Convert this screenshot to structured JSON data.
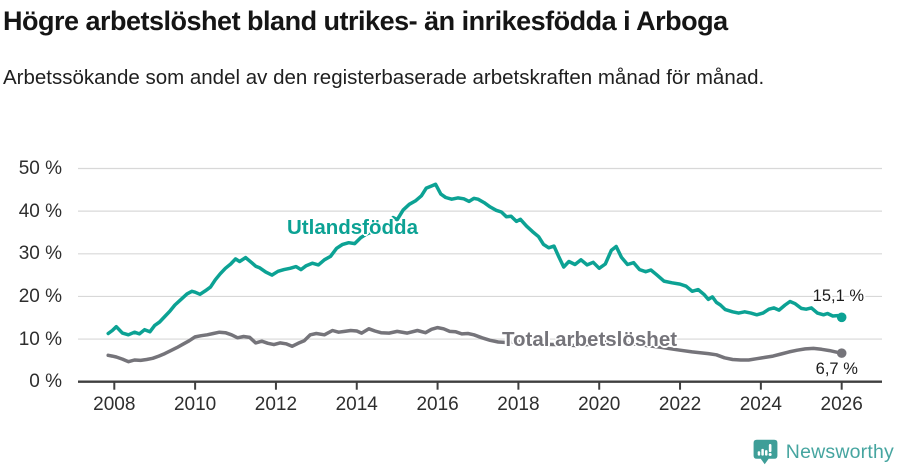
{
  "chart_data": {
    "type": "line",
    "title": "Högre arbetslöshet bland utrikes- än inrikesfödda i Arboga",
    "subtitle": "Arbetssökande som andel av den registerbaserade arbetskraften månad för månad.",
    "unit": "%",
    "legend_position": "inline-labels",
    "x_axis": {
      "range": [
        2007.6,
        2026.5
      ],
      "ticks": [
        2008,
        2010,
        2012,
        2014,
        2016,
        2018,
        2020,
        2022,
        2024,
        2026
      ],
      "tick_labels": [
        "2008",
        "2010",
        "2012",
        "2014",
        "2016",
        "2018",
        "2020",
        "2022",
        "2024",
        "2026"
      ]
    },
    "y_axis": {
      "range": [
        0,
        50
      ],
      "ticks": [
        0,
        10,
        20,
        30,
        40,
        50
      ],
      "tick_labels": [
        "0 %",
        "10 %",
        "20 %",
        "30 %",
        "40 %",
        "50 %"
      ],
      "grid": true
    },
    "series": [
      {
        "name": "Utlandsfödda",
        "color": "#0ca294",
        "end_label": "15,1 %",
        "end_value": 15.1,
        "points": [
          [
            2007.85,
            11.3
          ],
          [
            2007.95,
            12.0
          ],
          [
            2008.05,
            12.9
          ],
          [
            2008.2,
            11.4
          ],
          [
            2008.35,
            11.0
          ],
          [
            2008.5,
            11.6
          ],
          [
            2008.62,
            11.2
          ],
          [
            2008.75,
            12.2
          ],
          [
            2008.88,
            11.7
          ],
          [
            2009.0,
            13.2
          ],
          [
            2009.12,
            14.0
          ],
          [
            2009.25,
            15.3
          ],
          [
            2009.38,
            16.6
          ],
          [
            2009.5,
            18.0
          ],
          [
            2009.65,
            19.3
          ],
          [
            2009.8,
            20.6
          ],
          [
            2009.92,
            21.2
          ],
          [
            2010.0,
            21.0
          ],
          [
            2010.12,
            20.5
          ],
          [
            2010.25,
            21.3
          ],
          [
            2010.38,
            22.2
          ],
          [
            2010.5,
            23.9
          ],
          [
            2010.62,
            25.3
          ],
          [
            2010.75,
            26.6
          ],
          [
            2010.88,
            27.6
          ],
          [
            2011.0,
            28.8
          ],
          [
            2011.1,
            28.2
          ],
          [
            2011.25,
            29.1
          ],
          [
            2011.4,
            27.9
          ],
          [
            2011.5,
            27.1
          ],
          [
            2011.6,
            26.7
          ],
          [
            2011.75,
            25.7
          ],
          [
            2011.9,
            25.0
          ],
          [
            2012.05,
            25.9
          ],
          [
            2012.2,
            26.3
          ],
          [
            2012.35,
            26.6
          ],
          [
            2012.5,
            27.0
          ],
          [
            2012.62,
            26.3
          ],
          [
            2012.75,
            27.2
          ],
          [
            2012.9,
            27.8
          ],
          [
            2013.05,
            27.4
          ],
          [
            2013.2,
            28.6
          ],
          [
            2013.35,
            29.4
          ],
          [
            2013.5,
            31.3
          ],
          [
            2013.65,
            32.2
          ],
          [
            2013.8,
            32.6
          ],
          [
            2013.95,
            32.4
          ],
          [
            2014.1,
            33.8
          ],
          [
            2014.25,
            34.7
          ],
          [
            2014.4,
            35.2
          ],
          [
            2014.5,
            34.7
          ],
          [
            2014.65,
            35.8
          ],
          [
            2014.8,
            37.3
          ],
          [
            2014.9,
            38.5
          ],
          [
            2015.0,
            38.0
          ],
          [
            2015.15,
            40.3
          ],
          [
            2015.3,
            41.6
          ],
          [
            2015.45,
            42.4
          ],
          [
            2015.6,
            43.6
          ],
          [
            2015.72,
            45.4
          ],
          [
            2015.85,
            45.9
          ],
          [
            2015.95,
            46.3
          ],
          [
            2016.08,
            44.0
          ],
          [
            2016.2,
            43.2
          ],
          [
            2016.35,
            42.8
          ],
          [
            2016.5,
            43.1
          ],
          [
            2016.65,
            42.9
          ],
          [
            2016.78,
            42.3
          ],
          [
            2016.9,
            43.0
          ],
          [
            2017.0,
            42.8
          ],
          [
            2017.15,
            42.0
          ],
          [
            2017.3,
            41.0
          ],
          [
            2017.45,
            40.2
          ],
          [
            2017.58,
            39.8
          ],
          [
            2017.7,
            38.7
          ],
          [
            2017.82,
            38.8
          ],
          [
            2017.95,
            37.6
          ],
          [
            2018.05,
            38.1
          ],
          [
            2018.2,
            36.5
          ],
          [
            2018.35,
            35.2
          ],
          [
            2018.5,
            34.0
          ],
          [
            2018.62,
            32.2
          ],
          [
            2018.75,
            31.4
          ],
          [
            2018.88,
            31.8
          ],
          [
            2019.0,
            29.3
          ],
          [
            2019.12,
            26.9
          ],
          [
            2019.25,
            28.2
          ],
          [
            2019.4,
            27.5
          ],
          [
            2019.55,
            28.6
          ],
          [
            2019.7,
            27.4
          ],
          [
            2019.85,
            28.0
          ],
          [
            2020.0,
            26.6
          ],
          [
            2020.15,
            27.6
          ],
          [
            2020.3,
            30.8
          ],
          [
            2020.42,
            31.7
          ],
          [
            2020.55,
            29.2
          ],
          [
            2020.7,
            27.5
          ],
          [
            2020.85,
            27.9
          ],
          [
            2021.0,
            26.3
          ],
          [
            2021.15,
            25.8
          ],
          [
            2021.28,
            26.2
          ],
          [
            2021.42,
            25.1
          ],
          [
            2021.6,
            23.6
          ],
          [
            2021.8,
            23.2
          ],
          [
            2022.0,
            22.9
          ],
          [
            2022.15,
            22.4
          ],
          [
            2022.3,
            21.2
          ],
          [
            2022.45,
            21.6
          ],
          [
            2022.6,
            20.4
          ],
          [
            2022.7,
            19.3
          ],
          [
            2022.8,
            19.9
          ],
          [
            2022.9,
            18.6
          ],
          [
            2023.0,
            18.0
          ],
          [
            2023.12,
            16.9
          ],
          [
            2023.3,
            16.4
          ],
          [
            2023.45,
            16.1
          ],
          [
            2023.6,
            16.4
          ],
          [
            2023.75,
            16.1
          ],
          [
            2023.9,
            15.7
          ],
          [
            2024.05,
            16.1
          ],
          [
            2024.2,
            17.0
          ],
          [
            2024.32,
            17.3
          ],
          [
            2024.45,
            16.8
          ],
          [
            2024.6,
            18.0
          ],
          [
            2024.72,
            18.8
          ],
          [
            2024.85,
            18.3
          ],
          [
            2025.0,
            17.2
          ],
          [
            2025.12,
            17.0
          ],
          [
            2025.25,
            17.3
          ],
          [
            2025.4,
            16.1
          ],
          [
            2025.55,
            15.7
          ],
          [
            2025.65,
            16.0
          ],
          [
            2025.78,
            15.4
          ],
          [
            2025.9,
            15.5
          ],
          [
            2026.0,
            15.1
          ]
        ]
      },
      {
        "name": "Total arbetslöshet",
        "color": "#75747a",
        "end_label": "6,7 %",
        "end_value": 6.7,
        "points": [
          [
            2007.85,
            6.2
          ],
          [
            2007.95,
            6.0
          ],
          [
            2008.05,
            5.8
          ],
          [
            2008.2,
            5.3
          ],
          [
            2008.35,
            4.7
          ],
          [
            2008.5,
            5.1
          ],
          [
            2008.65,
            5.0
          ],
          [
            2008.8,
            5.2
          ],
          [
            2008.95,
            5.5
          ],
          [
            2009.1,
            6.0
          ],
          [
            2009.25,
            6.6
          ],
          [
            2009.4,
            7.3
          ],
          [
            2009.55,
            8.0
          ],
          [
            2009.7,
            8.8
          ],
          [
            2009.85,
            9.6
          ],
          [
            2010.0,
            10.5
          ],
          [
            2010.15,
            10.8
          ],
          [
            2010.3,
            11.0
          ],
          [
            2010.45,
            11.3
          ],
          [
            2010.6,
            11.6
          ],
          [
            2010.75,
            11.5
          ],
          [
            2010.9,
            11.0
          ],
          [
            2011.05,
            10.3
          ],
          [
            2011.2,
            10.6
          ],
          [
            2011.35,
            10.4
          ],
          [
            2011.5,
            9.1
          ],
          [
            2011.65,
            9.5
          ],
          [
            2011.8,
            9.0
          ],
          [
            2011.95,
            8.7
          ],
          [
            2012.1,
            9.1
          ],
          [
            2012.25,
            8.9
          ],
          [
            2012.4,
            8.3
          ],
          [
            2012.55,
            9.0
          ],
          [
            2012.7,
            9.6
          ],
          [
            2012.85,
            11.0
          ],
          [
            2013.0,
            11.3
          ],
          [
            2013.2,
            11.0
          ],
          [
            2013.4,
            12.0
          ],
          [
            2013.55,
            11.6
          ],
          [
            2013.7,
            11.8
          ],
          [
            2013.85,
            12.0
          ],
          [
            2014.0,
            11.9
          ],
          [
            2014.12,
            11.4
          ],
          [
            2014.3,
            12.4
          ],
          [
            2014.45,
            11.9
          ],
          [
            2014.6,
            11.5
          ],
          [
            2014.8,
            11.4
          ],
          [
            2015.0,
            11.8
          ],
          [
            2015.25,
            11.4
          ],
          [
            2015.5,
            12.0
          ],
          [
            2015.7,
            11.5
          ],
          [
            2015.85,
            12.3
          ],
          [
            2016.0,
            12.7
          ],
          [
            2016.15,
            12.4
          ],
          [
            2016.3,
            11.8
          ],
          [
            2016.45,
            11.7
          ],
          [
            2016.6,
            11.2
          ],
          [
            2016.75,
            11.3
          ],
          [
            2016.9,
            11.0
          ],
          [
            2017.1,
            10.3
          ],
          [
            2017.3,
            9.7
          ],
          [
            2017.5,
            9.3
          ],
          [
            2017.7,
            9.2
          ],
          [
            2018.0,
            9.4
          ],
          [
            2018.3,
            9.0
          ],
          [
            2018.6,
            8.8
          ],
          [
            2019.0,
            8.7
          ],
          [
            2019.4,
            8.5
          ],
          [
            2019.8,
            8.8
          ],
          [
            2020.2,
            9.6
          ],
          [
            2020.5,
            9.3
          ],
          [
            2021.0,
            8.7
          ],
          [
            2021.5,
            8.1
          ],
          [
            2022.0,
            7.4
          ],
          [
            2022.3,
            7.0
          ],
          [
            2022.5,
            6.8
          ],
          [
            2022.7,
            6.6
          ],
          [
            2022.9,
            6.3
          ],
          [
            2023.1,
            5.6
          ],
          [
            2023.3,
            5.2
          ],
          [
            2023.5,
            5.1
          ],
          [
            2023.7,
            5.1
          ],
          [
            2023.9,
            5.4
          ],
          [
            2024.1,
            5.7
          ],
          [
            2024.3,
            6.0
          ],
          [
            2024.5,
            6.5
          ],
          [
            2024.7,
            7.0
          ],
          [
            2024.9,
            7.4
          ],
          [
            2025.1,
            7.7
          ],
          [
            2025.3,
            7.8
          ],
          [
            2025.5,
            7.6
          ],
          [
            2025.7,
            7.3
          ],
          [
            2025.85,
            7.0
          ],
          [
            2026.0,
            6.7
          ]
        ]
      }
    ],
    "colors": {
      "grid": "#d8d8d8",
      "axis": "#3f3f3f",
      "text": "#2e2e2e"
    }
  },
  "footer": {
    "brand": "Newsworthy",
    "brand_color": "#46a5a0",
    "logo_icon": "newsworthy-speech-bubble-bar-chart-icon"
  }
}
